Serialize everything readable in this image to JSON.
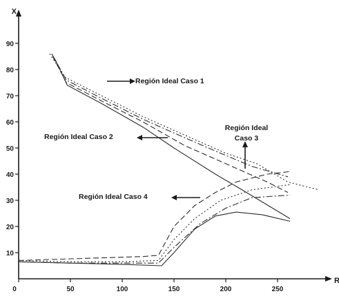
{
  "chart_data": {
    "type": "line",
    "xlabel": "R",
    "ylabel": "X",
    "xlim": [
      0,
      290
    ],
    "ylim": [
      0,
      95
    ],
    "x_ticks": [
      0,
      50,
      100,
      150,
      200,
      250
    ],
    "y_ticks": [
      10,
      20,
      30,
      40,
      50,
      60,
      70,
      80,
      90
    ],
    "grid": false,
    "annotations": [
      {
        "id": "caso1",
        "lines": [
          "Región Ideal Caso 1"
        ],
        "arrow": "left"
      },
      {
        "id": "caso2",
        "lines": [
          "Región Ideal Caso 2"
        ],
        "arrow": "left"
      },
      {
        "id": "caso3",
        "lines": [
          "Región Ideal",
          "Caso 3"
        ],
        "arrow": "down"
      },
      {
        "id": "caso4",
        "lines": [
          "Región Ideal Caso 4"
        ],
        "arrow": "left"
      }
    ],
    "series": [
      {
        "style": "dotted",
        "points": [
          [
            30,
            86
          ],
          [
            45,
            77
          ],
          [
            80,
            70
          ],
          [
            120,
            62
          ],
          [
            160,
            55
          ],
          [
            200,
            48
          ],
          [
            230,
            44
          ],
          [
            260,
            37
          ],
          [
            290,
            34
          ]
        ]
      },
      {
        "style": "dashdot",
        "points": [
          [
            32,
            86
          ],
          [
            46,
            76
          ],
          [
            80,
            69
          ],
          [
            120,
            61
          ],
          [
            160,
            54
          ],
          [
            195,
            48
          ],
          [
            225,
            43
          ],
          [
            260,
            39
          ]
        ]
      },
      {
        "style": "dashed",
        "points": [
          [
            33,
            85
          ],
          [
            46,
            75
          ],
          [
            80,
            68
          ],
          [
            120,
            60
          ],
          [
            160,
            51
          ],
          [
            200,
            44
          ],
          [
            240,
            37
          ],
          [
            260,
            33
          ]
        ]
      },
      {
        "style": "solid",
        "points": [
          [
            35,
            84
          ],
          [
            47,
            74
          ],
          [
            80,
            67
          ],
          [
            120,
            58
          ],
          [
            150,
            50
          ],
          [
            190,
            40
          ],
          [
            220,
            33
          ],
          [
            262,
            23
          ]
        ]
      },
      {
        "style": "dashed",
        "points": [
          [
            0,
            7
          ],
          [
            40,
            7.5
          ],
          [
            80,
            8
          ],
          [
            120,
            8.5
          ],
          [
            135,
            9
          ],
          [
            150,
            20
          ],
          [
            170,
            28
          ],
          [
            190,
            33
          ],
          [
            210,
            37
          ],
          [
            240,
            40
          ],
          [
            262,
            41
          ]
        ]
      },
      {
        "style": "dotted",
        "points": [
          [
            0,
            7
          ],
          [
            50,
            6.5
          ],
          [
            100,
            6.5
          ],
          [
            135,
            7
          ],
          [
            150,
            15
          ],
          [
            170,
            23
          ],
          [
            195,
            30
          ],
          [
            225,
            34
          ],
          [
            262,
            36
          ]
        ]
      },
      {
        "style": "dashdot",
        "points": [
          [
            0,
            6.5
          ],
          [
            50,
            6
          ],
          [
            100,
            6
          ],
          [
            135,
            6
          ],
          [
            150,
            12
          ],
          [
            175,
            21
          ],
          [
            200,
            27
          ],
          [
            225,
            31
          ],
          [
            262,
            32
          ]
        ]
      },
      {
        "style": "solid",
        "points": [
          [
            0,
            6.5
          ],
          [
            50,
            6
          ],
          [
            100,
            5.5
          ],
          [
            138,
            5
          ],
          [
            150,
            10
          ],
          [
            170,
            19
          ],
          [
            190,
            24
          ],
          [
            210,
            25.5
          ],
          [
            235,
            24.5
          ],
          [
            262,
            22
          ]
        ]
      }
    ]
  }
}
